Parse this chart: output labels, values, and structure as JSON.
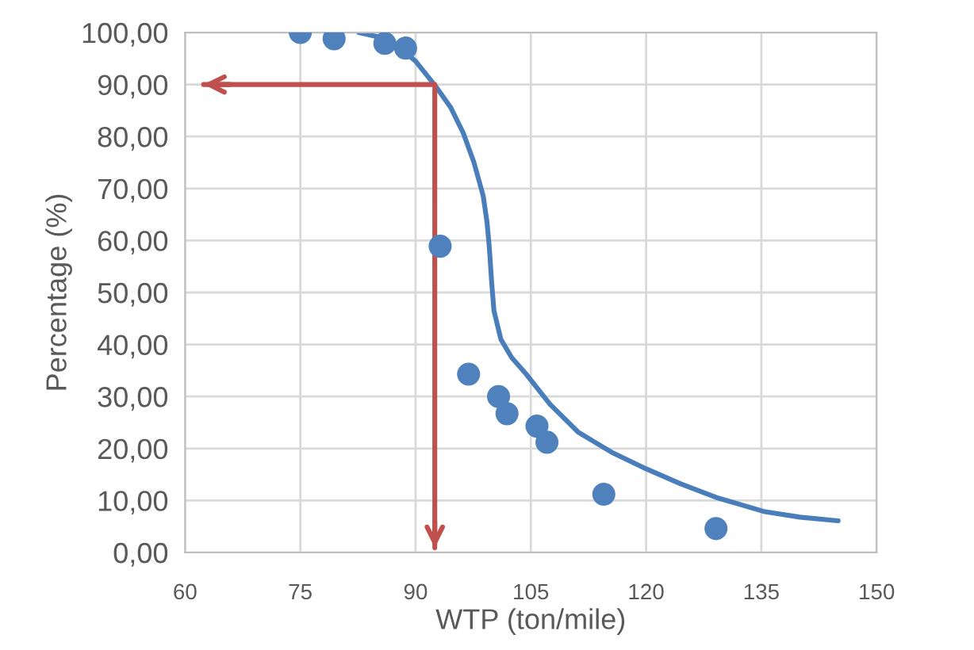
{
  "chart_data": {
    "type": "scatter",
    "xlabel": "WTP (ton/mile)",
    "ylabel": "Percentage (%)",
    "xlim": [
      60,
      150
    ],
    "xticks": [
      60,
      75,
      90,
      105,
      120,
      135,
      150
    ],
    "ylim": [
      0,
      100
    ],
    "yticks": [
      {
        "value": 0,
        "label": "0,00"
      },
      {
        "value": 10,
        "label": "10,00"
      },
      {
        "value": 20,
        "label": "20,00"
      },
      {
        "value": 30,
        "label": "30,00"
      },
      {
        "value": 40,
        "label": "40,00"
      },
      {
        "value": 50,
        "label": "50,00"
      },
      {
        "value": 60,
        "label": "60,00"
      },
      {
        "value": 70,
        "label": "70,00"
      },
      {
        "value": 80,
        "label": "80,00"
      },
      {
        "value": 90,
        "label": "90,00"
      },
      {
        "value": 100,
        "label": "100,00"
      }
    ],
    "grid": true,
    "marker": "circle",
    "series": [
      {
        "color": "#4f81bd",
        "x": [
          75.0,
          79.4,
          86.0,
          88.7,
          93.2,
          96.9,
          100.8,
          101.9,
          105.8,
          107.1,
          114.5,
          129.1
        ],
        "values": [
          100.0,
          98.8,
          97.9,
          97.0,
          58.9,
          34.3,
          30.0,
          26.7,
          24.3,
          21.2,
          11.2,
          4.6
        ]
      },
      {
        "type": "line",
        "color": "#4a7ebb",
        "marker": "none",
        "line_style": "solid",
        "x": [
          82.6,
          85.0,
          87.1,
          90.0,
          92.7,
          94.6,
          96.2,
          97.6,
          98.8,
          99.3,
          99.6,
          99.9,
          100.2,
          101.1,
          102.5,
          104.4,
          107.5,
          111.2,
          115.5,
          120.0,
          124.5,
          129.1,
          135.3,
          140.0,
          145.0
        ],
        "values": [
          100.0,
          99.2,
          98.0,
          94.5,
          89.5,
          85.5,
          80.7,
          75.0,
          68.6,
          63.5,
          58.6,
          52.0,
          46.5,
          41.0,
          37.5,
          34.3,
          28.5,
          23.1,
          19.3,
          16.1,
          13.2,
          10.6,
          7.9,
          6.8,
          6.1
        ]
      },
      {
        "type": "line",
        "color": "#c0504d",
        "marker": "none",
        "line_style": "solid",
        "x": [
          62.4,
          92.5,
          92.5
        ],
        "values": [
          90,
          90,
          0.9
        ]
      }
    ]
  }
}
